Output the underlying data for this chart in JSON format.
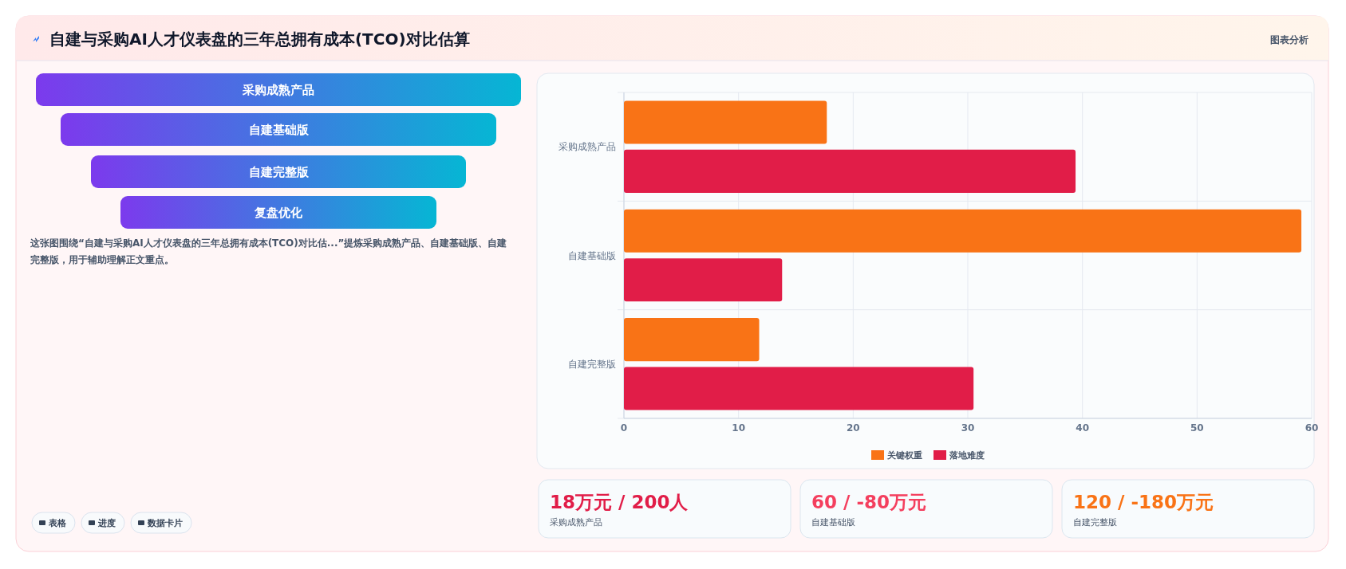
{
  "chart_data": [
    {
      "type": "other",
      "title": "自建与采购AI人才仪表盘的三年总拥有成本(TCO)对比估算",
      "categories": [
        "采购成熟产品",
        "自建基础版",
        "自建完整版",
        "复盘优化"
      ],
      "annotations": [
        "图表分析",
        "这张图围绕“自建与采购AI人才仪表盘的三年总拥有成本(TCO)对比估...”提炼采购成熟产品、自建基础版、自建完整版，用于辅助理解正文重点。",
        "表格",
        "进度",
        "数据卡片"
      ]
    },
    {
      "type": "bar",
      "orientation": "horizontal",
      "categories": [
        "采购成熟产品",
        "自建基础版",
        "自建完整版"
      ],
      "series": [
        {
          "name": "关键权重",
          "color": "#f97316",
          "values": [
            17.7,
            59.1,
            11.8
          ]
        },
        {
          "name": "落地难度",
          "color": "#e11d48",
          "values": [
            39.4,
            13.8,
            30.5
          ]
        }
      ],
      "xlim": [
        0,
        60
      ],
      "xticks": [
        0,
        10,
        20,
        30,
        40,
        50,
        60
      ],
      "grid": true,
      "legend": "bottom"
    },
    {
      "type": "other",
      "categories": [
        "采购成熟产品",
        "自建基础版",
        "自建完整版"
      ],
      "value_labels": [
        "18万元 / 200人",
        "60 / -80万元",
        "120 / -180万元"
      ]
    }
  ]
}
